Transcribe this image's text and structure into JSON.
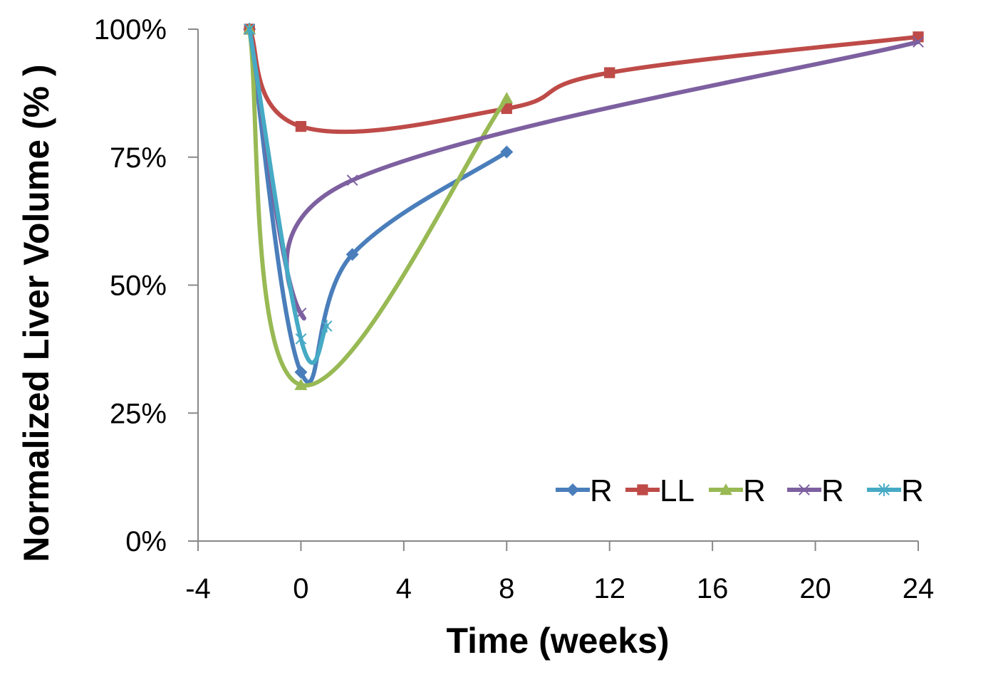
{
  "chart_data": {
    "type": "line",
    "title": "",
    "xlabel": "Time (weeks)",
    "ylabel": "Normalized Liver Volume (% )",
    "xlim": [
      -4,
      24
    ],
    "ylim": [
      0,
      1
    ],
    "x_ticks": [
      -4,
      0,
      4,
      8,
      12,
      16,
      20,
      24
    ],
    "x_tick_labels": [
      "-4",
      "0",
      "4",
      "8",
      "12",
      "16",
      "20",
      "24"
    ],
    "y_ticks": [
      0,
      0.25,
      0.5,
      0.75,
      1.0
    ],
    "y_tick_labels": [
      "0%",
      "25%",
      "50%",
      "75%",
      "100%"
    ],
    "grid": false,
    "smooth": true,
    "legend_position": "bottom-right",
    "series": [
      {
        "name": "R",
        "color": "#4a7ebb",
        "marker": "diamond",
        "x": [
          -2,
          0,
          2,
          8
        ],
        "y": [
          1.0,
          0.33,
          0.56,
          0.76
        ]
      },
      {
        "name": "LL",
        "color": "#be4b48",
        "marker": "square",
        "x": [
          -2,
          0,
          8,
          12,
          24
        ],
        "y": [
          1.0,
          0.81,
          0.845,
          0.915,
          0.985
        ]
      },
      {
        "name": "R",
        "color": "#98b954",
        "marker": "triangle",
        "x": [
          -2,
          0,
          8
        ],
        "y": [
          1.0,
          0.305,
          0.865
        ]
      },
      {
        "name": "R",
        "color": "#7d60a0",
        "marker": "x",
        "x": [
          -2,
          0,
          2,
          24
        ],
        "y": [
          1.0,
          0.445,
          0.705,
          0.975
        ]
      },
      {
        "name": "R",
        "color": "#46aac5",
        "marker": "star",
        "x": [
          -2,
          0,
          1
        ],
        "y": [
          1.0,
          0.395,
          0.42
        ]
      }
    ]
  }
}
